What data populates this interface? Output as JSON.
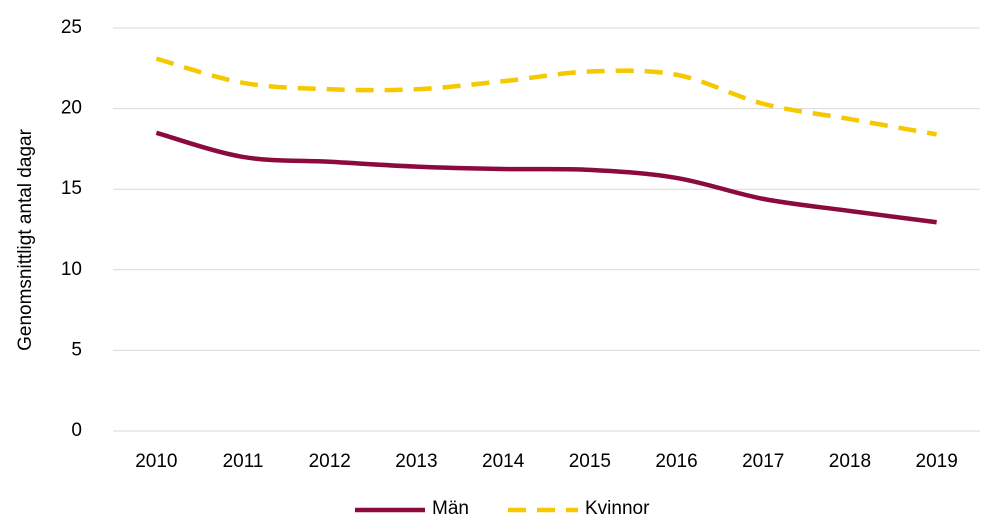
{
  "chart_data": {
    "type": "line",
    "y_label": "Genomsnittligt antal dagar",
    "categories": [
      "2010",
      "2011",
      "2012",
      "2013",
      "2014",
      "2015",
      "2016",
      "2017",
      "2018",
      "2019"
    ],
    "series": [
      {
        "name": "Män",
        "color": "#8c0b3e",
        "dash": false,
        "values": [
          18.5,
          17.0,
          16.7,
          16.4,
          16.25,
          16.2,
          15.7,
          14.4,
          13.65,
          12.95
        ]
      },
      {
        "name": "Kvinnor",
        "color": "#f5c800",
        "dash": true,
        "values": [
          23.1,
          21.6,
          21.2,
          21.2,
          21.7,
          22.3,
          22.1,
          20.3,
          19.35,
          18.4
        ]
      }
    ],
    "ylim": [
      0,
      25
    ],
    "yticks": [
      0,
      5,
      10,
      15,
      20,
      25
    ],
    "grid": true,
    "legend": "bottom"
  }
}
